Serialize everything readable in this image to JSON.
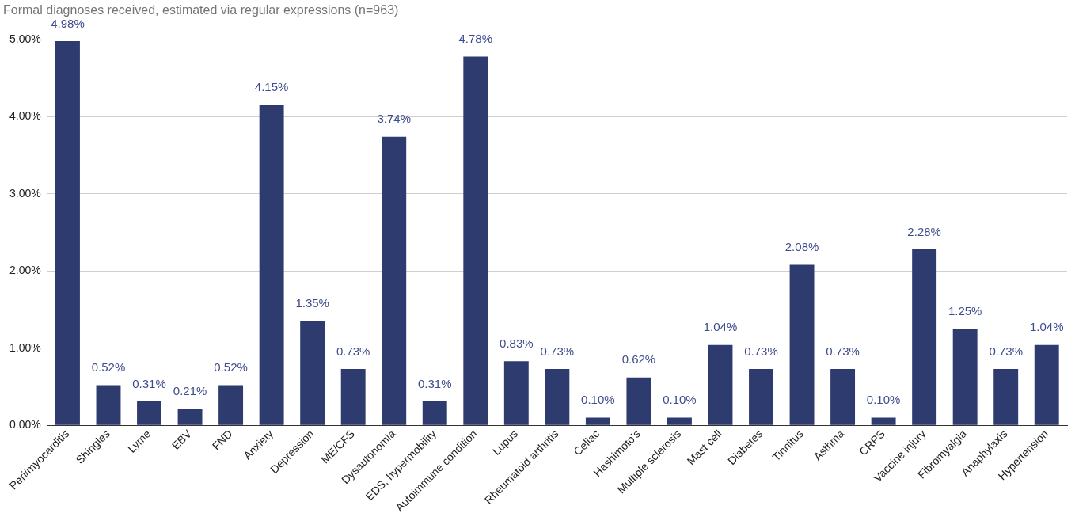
{
  "chart_data": {
    "type": "bar",
    "title": "Formal diagnoses received, estimated via regular expressions (n=963)",
    "categories": [
      "Peri/myocarditis",
      "Shingles",
      "Lyme",
      "EBV",
      "FND",
      "Anxiety",
      "Depression",
      "ME/CFS",
      "Dysautonomia",
      "EDS, hypermobility",
      "Autoimmune condition",
      "Lupus",
      "Rheumatoid arthritis",
      "Celiac",
      "Hashimoto's",
      "Multiple sclerosis",
      "Mast cell",
      "Diabetes",
      "Tinnitus",
      "Asthma",
      "CRPS",
      "Vaccine injury",
      "Fibromyalgia",
      "Anaphylaxis",
      "Hypertension"
    ],
    "values": [
      4.98,
      0.52,
      0.31,
      0.21,
      0.52,
      4.15,
      1.35,
      0.73,
      3.74,
      0.31,
      4.78,
      0.83,
      0.73,
      0.1,
      0.62,
      0.1,
      1.04,
      0.73,
      2.08,
      0.73,
      0.1,
      2.28,
      1.25,
      0.73,
      1.04
    ],
    "value_labels": [
      "4.98%",
      "0.52%",
      "0.31%",
      "0.21%",
      "0.52%",
      "4.15%",
      "1.35%",
      "0.73%",
      "3.74%",
      "0.31%",
      "4.78%",
      "0.83%",
      "0.73%",
      "0.10%",
      "0.62%",
      "0.10%",
      "1.04%",
      "0.73%",
      "2.08%",
      "0.73%",
      "0.10%",
      "2.28%",
      "1.25%",
      "0.73%",
      "1.04%"
    ],
    "color": "#2e3b6e",
    "ylim": [
      0,
      5
    ],
    "yticks": [
      {
        "value": 0,
        "label": "0.00%"
      },
      {
        "value": 1,
        "label": "1.00%"
      },
      {
        "value": 2,
        "label": "2.00%"
      },
      {
        "value": 3,
        "label": "3.00%"
      },
      {
        "value": 4,
        "label": "4.00%"
      },
      {
        "value": 5,
        "label": "5.00%"
      }
    ],
    "grid": "y",
    "legend": false
  }
}
